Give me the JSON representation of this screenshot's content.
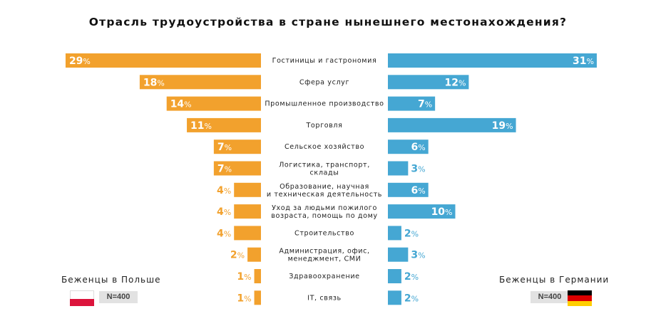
{
  "title": "Отрасль трудоустройства в стране нынешнего местонахождения?",
  "colors": {
    "left": "#f2a12d",
    "right": "#45a7d3"
  },
  "legend": {
    "left": {
      "label": "Беженцы в Польше",
      "n": "N=400",
      "flag_icon": "poland-flag-icon"
    },
    "right": {
      "label": "Беженцы в Германии",
      "n": "N=400",
      "flag_icon": "germany-flag-icon"
    }
  },
  "chart_data": {
    "type": "bar",
    "orientation": "horizontal-diverging",
    "unit": "%",
    "categories": [
      [
        "Гостиницы и гастрономия"
      ],
      [
        "Сфера услуг"
      ],
      [
        "Промышленное производство"
      ],
      [
        "Торговля"
      ],
      [
        "Сельское хозяйство"
      ],
      [
        "Логистика, транспорт,",
        "склады"
      ],
      [
        "Образование, научная",
        "и техническая деятельность"
      ],
      [
        "Уход за людьми пожилого",
        "возраста, помощь по дому"
      ],
      [
        "Строительство"
      ],
      [
        "Администрация, офис,",
        "менеджмент, СМИ"
      ],
      [
        "Здравоохранение"
      ],
      [
        "IT, связь"
      ]
    ],
    "series": [
      {
        "name": "Беженцы в Польше",
        "values": [
          29,
          18,
          14,
          11,
          7,
          7,
          4,
          4,
          4,
          2,
          1,
          1
        ]
      },
      {
        "name": "Беженцы в Германии",
        "values": [
          31,
          12,
          7,
          19,
          6,
          3,
          6,
          10,
          2,
          3,
          2,
          2
        ]
      }
    ]
  }
}
